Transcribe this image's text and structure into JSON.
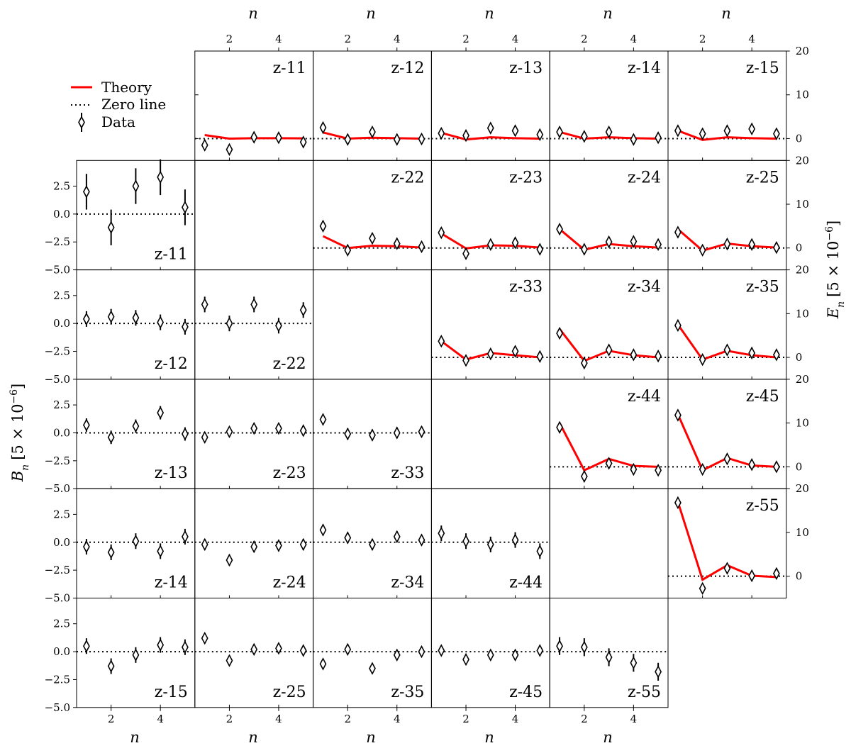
{
  "chart_data": {
    "type": "scatter",
    "description_axes": {
      "x_label": "n",
      "x_ticks": [
        2,
        4
      ],
      "x_range": [
        0.6,
        5.4
      ],
      "B_label": "B",
      "B_label_sub": "n",
      "B_label_unit": "[5 × 10",
      "B_label_exp": "−6",
      "B_label_close": "]",
      "B_range": [
        -5.0,
        4.8
      ],
      "B_ticks": [
        "2.5",
        "0.0",
        "−2.5",
        "−5.0"
      ],
      "E_label": "E",
      "E_label_sub": "n",
      "E_label_unit": "[5 × 10",
      "E_label_exp": "−6",
      "E_label_close": "]",
      "E_range": [
        -5.0,
        20.0
      ],
      "E_ticks": [
        "20",
        "10",
        "0"
      ]
    },
    "legend": {
      "theory": "Theory",
      "zero": "Zero line",
      "data": "Data"
    },
    "colors": {
      "theory": "#ff0000",
      "data": "#000000",
      "zero": "#000000"
    },
    "E_panels": [
      {
        "label": "z-11",
        "row": 0,
        "col": 1,
        "theory": [
          0.8,
          0.0,
          0.1,
          0.1,
          0.05
        ],
        "data": [
          -1.5,
          -2.5,
          0.3,
          0.2,
          -0.8
        ],
        "err": [
          1.0,
          1.2,
          1.0,
          1.0,
          1.0
        ]
      },
      {
        "label": "z-12",
        "row": 0,
        "col": 2,
        "theory": [
          1.4,
          0.0,
          0.2,
          0.1,
          0.0
        ],
        "data": [
          2.5,
          -0.2,
          1.5,
          -0.2,
          -0.1
        ],
        "err": [
          0.8,
          0.7,
          0.8,
          0.7,
          0.7
        ]
      },
      {
        "label": "z-13",
        "row": 0,
        "col": 3,
        "theory": [
          1.3,
          -0.2,
          0.3,
          0.1,
          0.0
        ],
        "data": [
          1.2,
          0.7,
          2.4,
          1.8,
          0.9
        ],
        "err": [
          0.8,
          0.8,
          0.8,
          0.8,
          0.8
        ]
      },
      {
        "label": "z-14",
        "row": 0,
        "col": 4,
        "theory": [
          1.5,
          0.0,
          0.3,
          0.1,
          0.0
        ],
        "data": [
          1.5,
          0.5,
          1.5,
          -0.2,
          0.2
        ],
        "err": [
          0.8,
          0.8,
          0.8,
          0.8,
          0.8
        ]
      },
      {
        "label": "z-15",
        "row": 0,
        "col": 5,
        "theory": [
          1.8,
          -0.3,
          0.3,
          0.1,
          0.0
        ],
        "data": [
          1.8,
          1.1,
          1.8,
          2.2,
          1.1
        ],
        "err": [
          0.9,
          0.8,
          0.8,
          0.8,
          0.8
        ]
      },
      {
        "label": "z-22",
        "row": 1,
        "col": 2,
        "theory": [
          2.7,
          0.0,
          0.5,
          0.4,
          0.1
        ],
        "data": [
          5.0,
          -0.5,
          2.2,
          1.0,
          0.3
        ],
        "err": [
          0.7,
          0.7,
          0.7,
          0.7,
          0.7
        ]
      },
      {
        "label": "z-23",
        "row": 1,
        "col": 3,
        "theory": [
          3.3,
          -0.1,
          0.6,
          0.5,
          0.1
        ],
        "data": [
          3.5,
          -1.3,
          0.8,
          1.2,
          -0.3
        ],
        "err": [
          0.7,
          0.7,
          0.7,
          0.7,
          0.7
        ]
      },
      {
        "label": "z-24",
        "row": 1,
        "col": 4,
        "theory": [
          4.3,
          -0.4,
          0.9,
          0.4,
          0.1
        ],
        "data": [
          4.3,
          -0.3,
          1.4,
          1.5,
          0.8
        ],
        "err": [
          0.7,
          0.7,
          0.7,
          0.7,
          0.7
        ]
      },
      {
        "label": "z-25",
        "row": 1,
        "col": 5,
        "theory": [
          4.3,
          -0.6,
          1.0,
          0.4,
          0.1
        ],
        "data": [
          3.6,
          -0.5,
          0.9,
          0.8,
          0.1
        ],
        "err": [
          0.8,
          0.7,
          0.7,
          0.7,
          0.7
        ]
      },
      {
        "label": "z-33",
        "row": 2,
        "col": 3,
        "theory": [
          3.7,
          -0.5,
          1.0,
          0.5,
          0.0
        ],
        "data": [
          3.7,
          -0.7,
          0.8,
          1.4,
          0.2
        ],
        "err": [
          0.8,
          0.7,
          0.7,
          0.7,
          0.7
        ]
      },
      {
        "label": "z-34",
        "row": 2,
        "col": 4,
        "theory": [
          6.5,
          -0.8,
          1.5,
          0.5,
          0.0
        ],
        "data": [
          5.5,
          -1.3,
          1.7,
          0.6,
          0.3
        ],
        "err": [
          0.8,
          0.7,
          0.7,
          0.7,
          0.7
        ]
      },
      {
        "label": "z-35",
        "row": 2,
        "col": 5,
        "theory": [
          7.5,
          -0.5,
          1.5,
          0.5,
          0.0
        ],
        "data": [
          7.3,
          -0.5,
          1.7,
          1.0,
          0.6
        ],
        "err": [
          0.8,
          0.7,
          0.7,
          0.7,
          0.7
        ]
      },
      {
        "label": "z-44",
        "row": 3,
        "col": 4,
        "theory": [
          10.0,
          -0.8,
          1.8,
          0.2,
          0.0
        ],
        "data": [
          9.0,
          -2.2,
          0.8,
          -0.6,
          -0.8
        ],
        "err": [
          0.9,
          0.8,
          0.8,
          0.8,
          0.8
        ]
      },
      {
        "label": "z-45",
        "row": 3,
        "col": 5,
        "theory": [
          12.0,
          -0.8,
          2.0,
          0.3,
          0.0
        ],
        "data": [
          11.8,
          -0.6,
          1.8,
          0.5,
          0.0
        ],
        "err": [
          0.9,
          0.8,
          0.8,
          0.8,
          0.8
        ]
      },
      {
        "label": "z-55",
        "row": 4,
        "col": 5,
        "theory": [
          17.0,
          -0.8,
          2.5,
          0.1,
          -0.2
        ],
        "data": [
          16.8,
          -2.8,
          1.8,
          0.1,
          0.6
        ],
        "err": [
          1.0,
          0.9,
          0.9,
          0.8,
          0.8
        ]
      }
    ],
    "B_panels": [
      {
        "label": "z-11",
        "row": 1,
        "col": 0,
        "data": [
          2.0,
          -1.2,
          2.5,
          3.3,
          0.6
        ],
        "err": [
          1.6,
          1.6,
          1.6,
          1.6,
          1.6
        ]
      },
      {
        "label": "z-12",
        "row": 2,
        "col": 0,
        "data": [
          0.4,
          0.6,
          0.5,
          0.1,
          -0.3
        ],
        "err": [
          0.7,
          0.7,
          0.7,
          0.7,
          0.7
        ]
      },
      {
        "label": "z-22",
        "row": 2,
        "col": 1,
        "data": [
          1.7,
          0.0,
          1.7,
          -0.2,
          1.2
        ],
        "err": [
          0.7,
          0.7,
          0.7,
          0.7,
          0.7
        ]
      },
      {
        "label": "z-13",
        "row": 3,
        "col": 0,
        "data": [
          0.7,
          -0.4,
          0.6,
          1.8,
          -0.1
        ],
        "err": [
          0.6,
          0.6,
          0.6,
          0.6,
          0.6
        ]
      },
      {
        "label": "z-23",
        "row": 3,
        "col": 1,
        "data": [
          -0.4,
          0.1,
          0.4,
          0.4,
          0.2
        ],
        "err": [
          0.4,
          0.4,
          0.4,
          0.4,
          0.4
        ]
      },
      {
        "label": "z-33",
        "row": 3,
        "col": 2,
        "data": [
          1.2,
          -0.1,
          -0.2,
          0.0,
          0.1
        ],
        "err": [
          0.5,
          0.5,
          0.5,
          0.5,
          0.5
        ]
      },
      {
        "label": "z-14",
        "row": 4,
        "col": 0,
        "data": [
          -0.4,
          -0.9,
          0.1,
          -0.8,
          0.5
        ],
        "err": [
          0.7,
          0.7,
          0.7,
          0.7,
          0.7
        ]
      },
      {
        "label": "z-24",
        "row": 4,
        "col": 1,
        "data": [
          -0.2,
          -1.6,
          -0.4,
          -0.3,
          -0.2
        ],
        "err": [
          0.5,
          0.5,
          0.5,
          0.5,
          0.5
        ]
      },
      {
        "label": "z-34",
        "row": 4,
        "col": 2,
        "data": [
          1.1,
          0.4,
          -0.2,
          0.5,
          0.2
        ],
        "err": [
          0.5,
          0.5,
          0.5,
          0.5,
          0.5
        ]
      },
      {
        "label": "z-44",
        "row": 4,
        "col": 3,
        "data": [
          0.8,
          0.1,
          -0.2,
          0.2,
          -0.8
        ],
        "err": [
          0.7,
          0.7,
          0.7,
          0.7,
          0.7
        ]
      },
      {
        "label": "z-15",
        "row": 5,
        "col": 0,
        "data": [
          0.5,
          -1.3,
          -0.3,
          0.6,
          0.4
        ],
        "err": [
          0.7,
          0.7,
          0.7,
          0.7,
          0.7
        ]
      },
      {
        "label": "z-25",
        "row": 5,
        "col": 1,
        "data": [
          1.2,
          -0.8,
          0.2,
          0.3,
          0.1
        ],
        "err": [
          0.4,
          0.4,
          0.4,
          0.4,
          0.4
        ]
      },
      {
        "label": "z-35",
        "row": 5,
        "col": 2,
        "data": [
          -1.1,
          0.2,
          -1.5,
          -0.3,
          0.0
        ],
        "err": [
          0.4,
          0.4,
          0.4,
          0.4,
          0.4
        ]
      },
      {
        "label": "z-45",
        "row": 5,
        "col": 3,
        "data": [
          0.1,
          -0.7,
          -0.3,
          -0.3,
          0.1
        ],
        "err": [
          0.4,
          0.4,
          0.4,
          0.4,
          0.4
        ]
      },
      {
        "label": "z-55",
        "row": 5,
        "col": 4,
        "data": [
          0.5,
          0.4,
          -0.5,
          -1.0,
          -1.8
        ],
        "err": [
          0.8,
          0.8,
          0.8,
          0.8,
          0.8
        ]
      }
    ]
  }
}
